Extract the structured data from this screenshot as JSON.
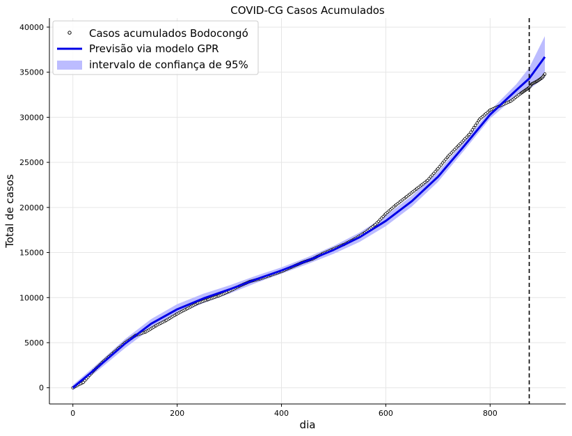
{
  "chart_data": {
    "type": "line",
    "title": "COVID-CG Casos Acumulados",
    "xlabel": "dia",
    "ylabel": "Total de casos",
    "xlim": [
      -45,
      945
    ],
    "ylim": [
      -1800,
      41000
    ],
    "xticks": [
      0,
      200,
      400,
      600,
      800
    ],
    "yticks": [
      0,
      5000,
      10000,
      15000,
      20000,
      25000,
      30000,
      35000,
      40000
    ],
    "grid": true,
    "legend_position": "top-left",
    "vline_x": 875,
    "legend": {
      "observed": "Casos acumulados Bodocongó",
      "prediction": "Previsão via modelo GPR",
      "interval": "intervalo de confiança de 95%"
    },
    "colors": {
      "prediction": "#0000e6",
      "interval": "#bcbcff",
      "observed_edge": "#000000",
      "vline": "#000000",
      "grid": "#e6e6e6"
    },
    "observed_anchors": {
      "x": [
        0,
        20,
        40,
        60,
        80,
        100,
        120,
        140,
        160,
        180,
        200,
        220,
        240,
        260,
        280,
        300,
        320,
        340,
        360,
        380,
        400,
        420,
        440,
        460,
        480,
        500,
        520,
        540,
        560,
        580,
        600,
        620,
        640,
        660,
        680,
        700,
        720,
        740,
        760,
        780,
        800,
        820,
        840,
        860,
        870,
        875,
        880,
        890,
        900,
        905
      ],
      "y": [
        0,
        600,
        1900,
        3000,
        4000,
        5000,
        5800,
        6200,
        6900,
        7500,
        8200,
        8800,
        9400,
        9800,
        10200,
        10700,
        11300,
        11800,
        12100,
        12500,
        12900,
        13400,
        13900,
        14300,
        14900,
        15400,
        15900,
        16500,
        17200,
        18100,
        19300,
        20300,
        21200,
        22100,
        23000,
        24300,
        25700,
        26900,
        28100,
        29800,
        30800,
        31300,
        31800,
        32700,
        33100,
        33300,
        33700,
        34000,
        34400,
        34800
      ]
    },
    "prediction": {
      "x": [
        0,
        50,
        100,
        150,
        200,
        250,
        300,
        350,
        400,
        450,
        500,
        550,
        600,
        650,
        700,
        750,
        800,
        850,
        875,
        905
      ],
      "y": [
        0,
        2400,
        4900,
        7100,
        8700,
        9900,
        10900,
        12000,
        13000,
        14100,
        15300,
        16700,
        18500,
        20700,
        23400,
        26800,
        30300,
        33000,
        34300,
        36700
      ],
      "ci_half_width": [
        300,
        400,
        500,
        520,
        560,
        520,
        460,
        400,
        350,
        380,
        440,
        520,
        580,
        600,
        560,
        500,
        450,
        650,
        1200,
        2300
      ]
    }
  }
}
